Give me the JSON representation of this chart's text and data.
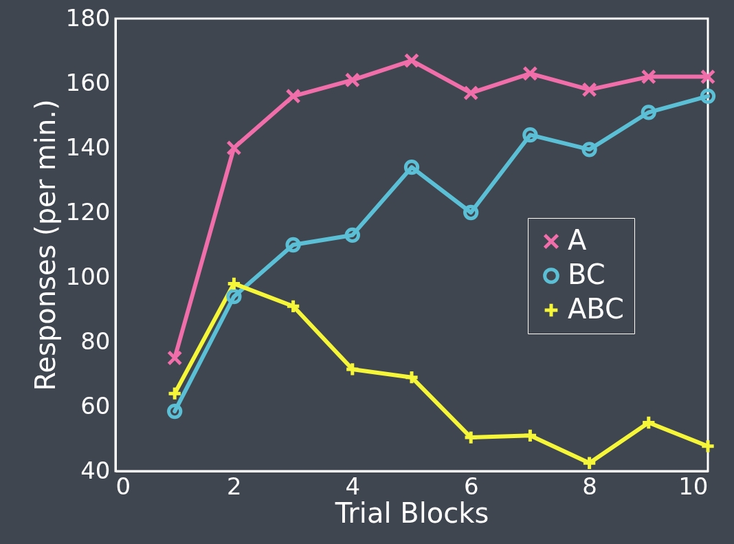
{
  "chart_data": {
    "type": "line",
    "xlabel": "Trial Blocks",
    "ylabel": "Responses (per min.)",
    "x": [
      1,
      2,
      3,
      4,
      5,
      6,
      7,
      8,
      9,
      10
    ],
    "series": [
      {
        "name": "A",
        "color": "#f06eaa",
        "marker": "cross",
        "values": [
          75,
          140,
          156,
          161,
          167,
          157,
          163,
          158,
          162,
          162
        ]
      },
      {
        "name": "BC",
        "color": "#5bc0d6",
        "marker": "circle",
        "values": [
          58.5,
          94,
          110,
          113,
          134,
          120,
          144,
          139.5,
          151,
          156
        ]
      },
      {
        "name": "ABC",
        "color": "#f5f53a",
        "marker": "plus",
        "values": [
          64,
          98,
          91,
          71.5,
          69,
          50.4,
          51,
          42.5,
          55,
          47.7
        ]
      }
    ],
    "xlim": [
      0,
      10
    ],
    "xticks": [
      0,
      2,
      4,
      6,
      8,
      10
    ],
    "ylim": [
      40,
      180
    ],
    "yticks": [
      40,
      60,
      80,
      100,
      120,
      140,
      160,
      180
    ],
    "grid": false,
    "legend": "right",
    "line_style": "solid"
  }
}
